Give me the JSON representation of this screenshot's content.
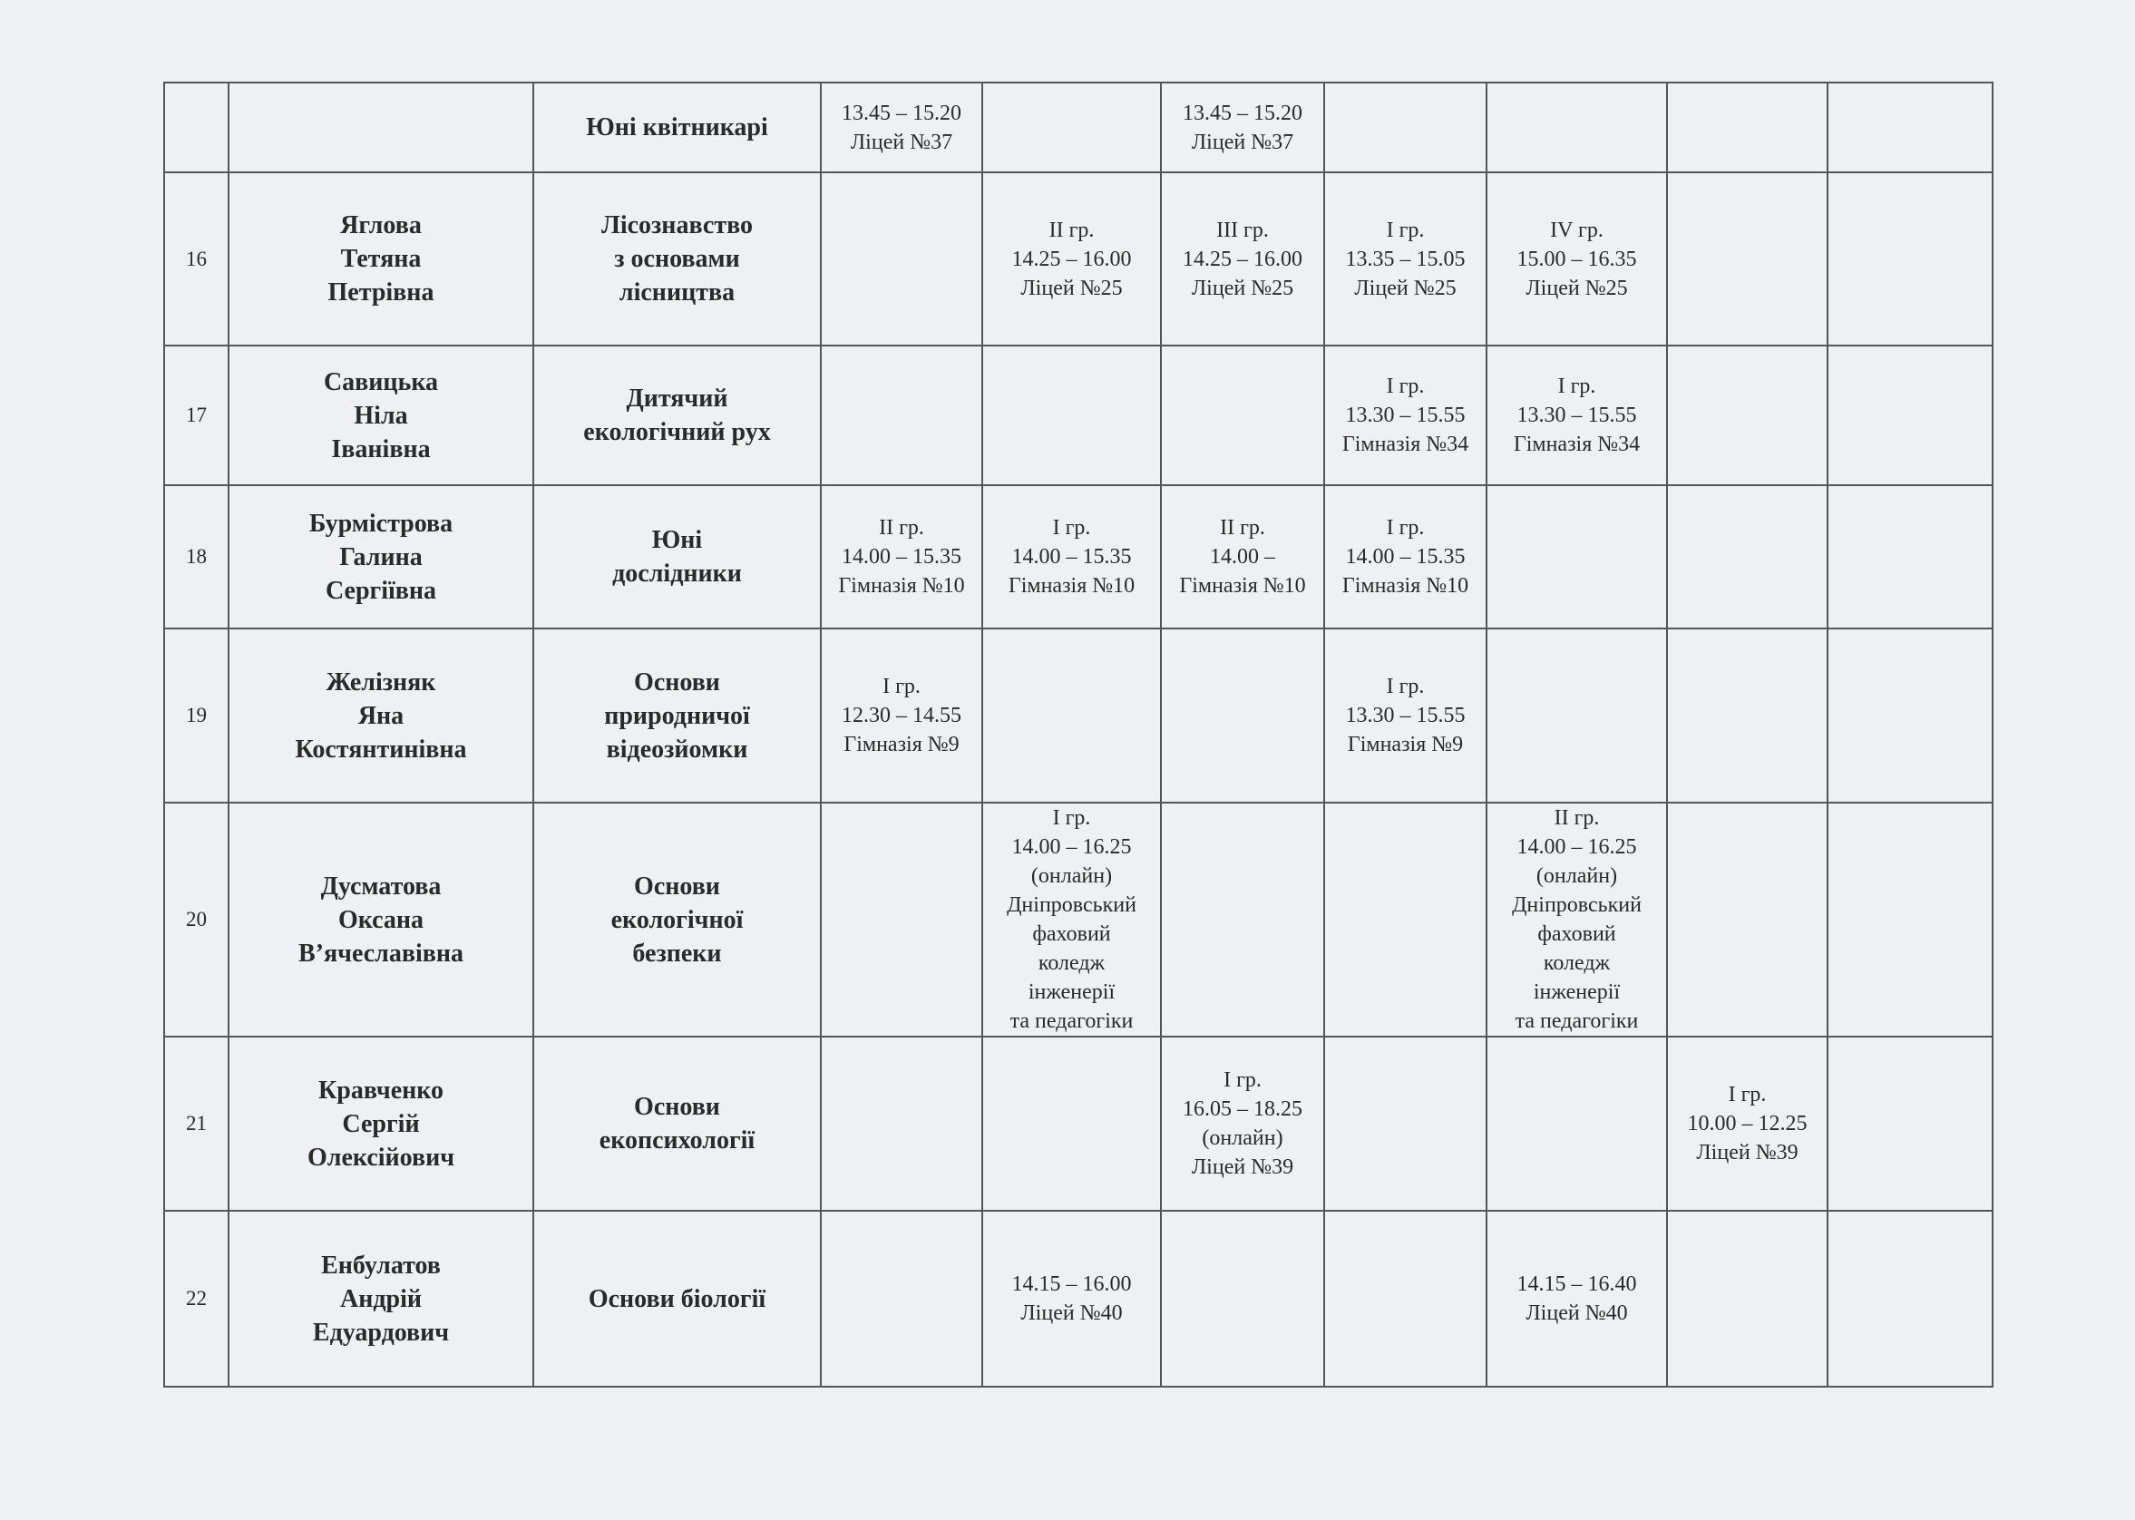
{
  "rows": [
    {
      "num": "",
      "name": "",
      "subject": "Юні квітникарі",
      "cells": [
        "13.45 – 15.20\nЛіцей №37",
        "",
        "13.45 – 15.20\nЛіцей №37",
        "",
        "",
        "",
        ""
      ]
    },
    {
      "num": "16",
      "name": "Яглова\nТетяна\nПетрівна",
      "subject": "Лісознавство\nз основами\nлісництва",
      "cells": [
        "",
        "II гр.\n14.25 – 16.00\nЛіцей №25",
        "III гр.\n14.25 – 16.00\nЛіцей №25",
        "I гр.\n13.35 – 15.05\nЛіцей №25",
        "IV гр.\n15.00 – 16.35\nЛіцей №25",
        "",
        ""
      ]
    },
    {
      "num": "17",
      "name": "Савицька\nНіла\nІванівна",
      "subject": "Дитячий\nекологічний рух",
      "cells": [
        "",
        "",
        "",
        "I гр.\n13.30 – 15.55\nГімназія №34",
        "I гр.\n13.30 – 15.55\nГімназія №34",
        "",
        ""
      ]
    },
    {
      "num": "18",
      "name": "Бурмістрова\nГалина\nСергіївна",
      "subject": "Юні\nдослідники",
      "cells": [
        "II гр.\n14.00 – 15.35\nГімназія №10",
        "I гр.\n14.00 – 15.35\nГімназія №10",
        "II гр.\n14.00 –\nГімназія №10",
        "I гр.\n14.00 – 15.35\nГімназія №10",
        "",
        "",
        ""
      ]
    },
    {
      "num": "19",
      "name": "Желізняк\nЯна\nКостянтинівна",
      "subject": "Основи\nприродничої\nвідеозйомки",
      "cells": [
        "I гр.\n12.30 – 14.55\nГімназія №9",
        "",
        "",
        "I гр.\n13.30 – 15.55\nГімназія №9",
        "",
        "",
        ""
      ]
    },
    {
      "num": "20",
      "name": "Дусматова\nОксана\nВ’ячеславівна",
      "subject": "Основи\nекологічної\nбезпеки",
      "cells": [
        "",
        "I гр.\n14.00 – 16.25\n(онлайн)\nДніпровський\nфаховий\nколедж\nінженерії\nта педагогіки",
        "",
        "",
        "II гр.\n14.00 – 16.25\n(онлайн)\nДніпровський\nфаховий\nколедж\nінженерії\nта педагогіки",
        "",
        ""
      ]
    },
    {
      "num": "21",
      "name": "Кравченко\nСергій\nОлексійович",
      "subject": "Основи\nекопсихології",
      "cells": [
        "",
        "",
        "I гр.\n16.05 – 18.25\n(онлайн)\nЛіцей №39",
        "",
        "",
        "I гр.\n10.00 – 12.25\nЛіцей №39",
        ""
      ]
    },
    {
      "num": "22",
      "name": "Енбулатов\nАндрій\nЕдуардович",
      "subject": "Основи біології",
      "cells": [
        "",
        "14.15 – 16.00\nЛіцей №40",
        "",
        "",
        "14.15 – 16.40\nЛіцей №40",
        "",
        ""
      ]
    }
  ]
}
